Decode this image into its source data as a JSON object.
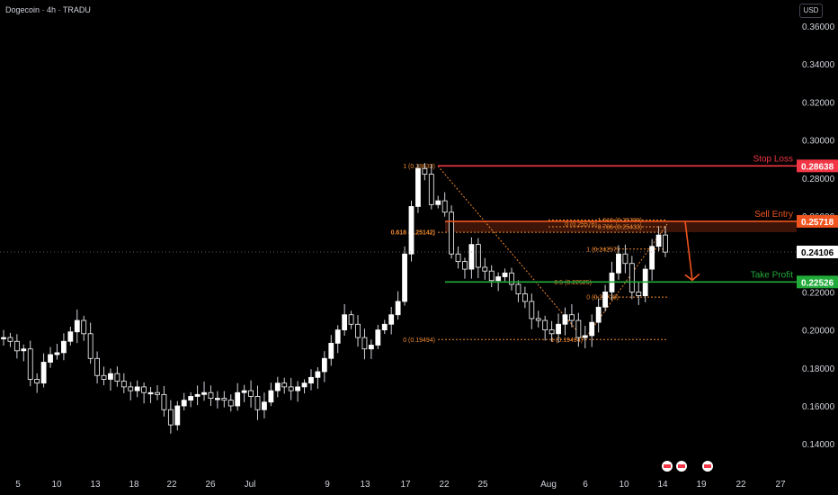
{
  "header": {
    "title": "Dogecoin · 4h · TRADU",
    "currency": "USD"
  },
  "chart_data": {
    "type": "candlestick",
    "ylim": [
      0.13,
      0.37
    ],
    "y_ticks": [
      "0.36000",
      "0.34000",
      "0.32000",
      "0.30000",
      "0.28000",
      "0.26000",
      "0.24000",
      "0.22000",
      "0.20000",
      "0.18000",
      "0.16000",
      "0.14000"
    ],
    "x_ticks": [
      "5",
      "10",
      "13",
      "18",
      "22",
      "26",
      "Jul",
      "9",
      "13",
      "17",
      "22",
      "25",
      "Aug",
      "6",
      "10",
      "14",
      "19",
      "22",
      "27"
    ],
    "series_close": [
      0.196,
      0.194,
      0.189,
      0.19,
      0.174,
      0.172,
      0.183,
      0.187,
      0.188,
      0.194,
      0.199,
      0.205,
      0.198,
      0.185,
      0.176,
      0.174,
      0.177,
      0.173,
      0.17,
      0.168,
      0.17,
      0.167,
      0.167,
      0.166,
      0.158,
      0.15,
      0.16,
      0.163,
      0.165,
      0.166,
      0.167,
      0.164,
      0.164,
      0.163,
      0.16,
      0.167,
      0.168,
      0.165,
      0.158,
      0.162,
      0.168,
      0.172,
      0.17,
      0.168,
      0.17,
      0.172,
      0.175,
      0.178,
      0.185,
      0.193,
      0.2,
      0.208,
      0.203,
      0.196,
      0.19,
      0.192,
      0.2,
      0.203,
      0.208,
      0.215,
      0.24,
      0.265,
      0.285,
      0.282,
      0.266,
      0.268,
      0.262,
      0.24,
      0.236,
      0.232,
      0.245,
      0.233,
      0.231,
      0.226,
      0.228,
      0.23,
      0.224,
      0.219,
      0.215,
      0.206,
      0.205,
      0.2,
      0.198,
      0.203,
      0.208,
      0.205,
      0.196,
      0.197,
      0.204,
      0.212,
      0.22,
      0.23,
      0.24,
      0.235,
      0.22,
      0.218,
      0.232,
      0.244,
      0.25,
      0.241
    ],
    "levels": [
      {
        "name": "Stop Loss",
        "value": 0.28638,
        "label": "0.28638",
        "color": "#f23645"
      },
      {
        "name": "Sell Entry",
        "value": 0.25718,
        "label": "0.25718",
        "color": "#f0541f"
      },
      {
        "name": "Take Profit",
        "value": 0.22526,
        "label": "0.22526",
        "color": "#22ab3a"
      }
    ],
    "last_price": {
      "value": 0.24106,
      "label": "0.24106"
    },
    "fib_labels": {
      "top_a": "1 (0.28633)",
      "mid_a": "0.618 (0.25142)",
      "bot_a": "0 (0.19494)",
      "r0": "0 (0.25576)",
      "r1618": "1.618 (0.25789)",
      "r786": "0.786 (0.25433)",
      "r1": "1 (0.24257)",
      "r05": "0.5 (0.22525)",
      "r0b": "0 (0.21728)",
      "r1b": "1 (0.19494)"
    },
    "colors": {
      "up": "#ffffff",
      "down": "#ffffff",
      "fib": "#f0882f"
    }
  }
}
